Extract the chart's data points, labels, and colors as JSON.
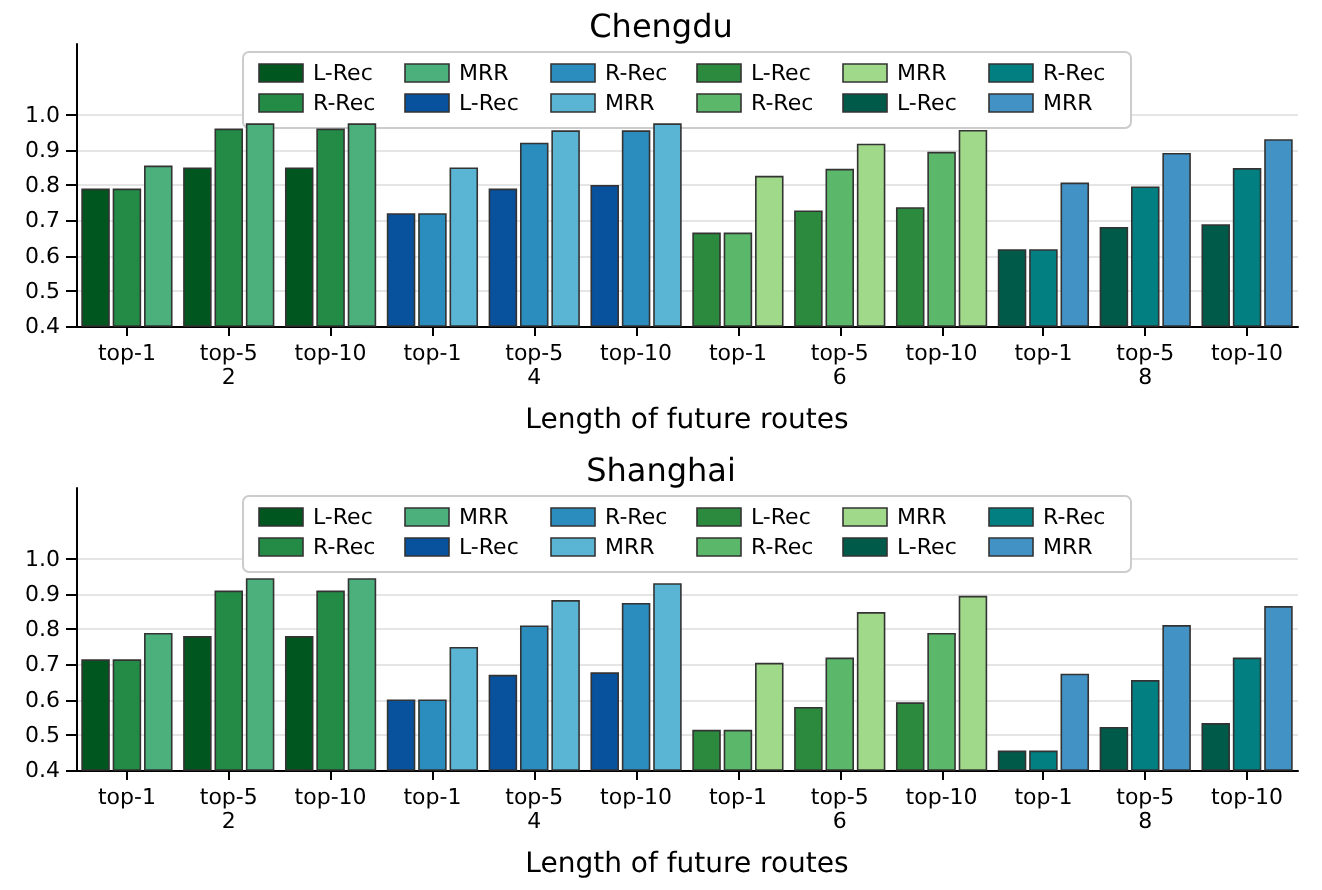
{
  "chart_data": [
    {
      "type": "bar",
      "title": "Chengdu",
      "xlabel": "Length of future routes",
      "categories": [
        "top-1",
        "top-5",
        "top-10",
        "top-1",
        "top-5",
        "top-10",
        "top-1",
        "top-5",
        "top-10",
        "top-1",
        "top-5",
        "top-10"
      ],
      "annotations": [
        "2",
        "4",
        "6",
        "8"
      ],
      "ylim": [
        0.4,
        1.2
      ],
      "yticks": [
        0.4,
        0.5,
        0.6,
        0.7,
        0.8,
        0.9,
        {
          "value": 1.0,
          "label": "1.0"
        }
      ],
      "grid": "y",
      "legend": "top",
      "series": [
        {
          "name": "L-Rec",
          "color": "#00561f",
          "values": [
            0.79,
            0.85,
            0.85,
            null,
            null,
            null,
            null,
            null,
            null,
            null,
            null,
            null
          ]
        },
        {
          "name": "R-Rec",
          "color": "#238b45",
          "values": [
            0.79,
            0.96,
            0.96,
            null,
            null,
            null,
            null,
            null,
            null,
            null,
            null,
            null
          ]
        },
        {
          "name": "MRR",
          "color": "#4bb07c",
          "values": [
            0.855,
            0.975,
            0.975,
            null,
            null,
            null,
            null,
            null,
            null,
            null,
            null,
            null
          ]
        },
        {
          "name": "L-Rec",
          "color": "#08519c",
          "values": [
            null,
            null,
            null,
            0.72,
            0.79,
            0.8,
            null,
            null,
            null,
            null,
            null,
            null
          ]
        },
        {
          "name": "R-Rec",
          "color": "#2b8cbe",
          "values": [
            null,
            null,
            null,
            0.72,
            0.92,
            0.955,
            null,
            null,
            null,
            null,
            null,
            null
          ]
        },
        {
          "name": "MRR",
          "color": "#5ab4d3",
          "values": [
            null,
            null,
            null,
            0.85,
            0.955,
            0.975,
            null,
            null,
            null,
            null,
            null,
            null
          ]
        },
        {
          "name": "L-Rec",
          "color": "#2b8a3e",
          "values": [
            null,
            null,
            null,
            null,
            null,
            null,
            0.665,
            0.728,
            0.737,
            null,
            null,
            null
          ]
        },
        {
          "name": "R-Rec",
          "color": "#5bb86b",
          "values": [
            null,
            null,
            null,
            null,
            null,
            null,
            0.665,
            0.846,
            0.894,
            null,
            null,
            null
          ]
        },
        {
          "name": "MRR",
          "color": "#a1d98b",
          "values": [
            null,
            null,
            null,
            null,
            null,
            null,
            0.826,
            0.917,
            0.956,
            null,
            null,
            null
          ]
        },
        {
          "name": "L-Rec",
          "color": "#005a4a",
          "values": [
            null,
            null,
            null,
            null,
            null,
            null,
            null,
            null,
            null,
            0.618,
            0.681,
            0.689
          ]
        },
        {
          "name": "R-Rec",
          "color": "#017f81",
          "values": [
            null,
            null,
            null,
            null,
            null,
            null,
            null,
            null,
            null,
            0.618,
            0.796,
            0.848
          ]
        },
        {
          "name": "MRR",
          "color": "#4292c6",
          "values": [
            null,
            null,
            null,
            null,
            null,
            null,
            null,
            null,
            null,
            0.807,
            0.891,
            0.93
          ]
        }
      ]
    },
    {
      "type": "bar",
      "title": "Shanghai",
      "xlabel": "Length of future routes",
      "categories": [
        "top-1",
        "top-5",
        "top-10",
        "top-1",
        "top-5",
        "top-10",
        "top-1",
        "top-5",
        "top-10",
        "top-1",
        "top-5",
        "top-10"
      ],
      "annotations": [
        "2",
        "4",
        "6",
        "8"
      ],
      "ylim": [
        0.4,
        1.2
      ],
      "yticks": [
        0.4,
        0.5,
        0.6,
        0.7,
        0.8,
        0.9,
        {
          "value": 1.0,
          "label": "1.0"
        }
      ],
      "grid": "y",
      "legend": "top",
      "series": [
        {
          "name": "L-Rec",
          "color": "#00561f",
          "values": [
            0.714,
            0.78,
            0.78,
            null,
            null,
            null,
            null,
            null,
            null,
            null,
            null,
            null
          ]
        },
        {
          "name": "R-Rec",
          "color": "#238b45",
          "values": [
            0.714,
            0.909,
            0.909,
            null,
            null,
            null,
            null,
            null,
            null,
            null,
            null,
            null
          ]
        },
        {
          "name": "MRR",
          "color": "#4bb07c",
          "values": [
            0.789,
            0.944,
            0.944,
            null,
            null,
            null,
            null,
            null,
            null,
            null,
            null,
            null
          ]
        },
        {
          "name": "L-Rec",
          "color": "#08519c",
          "values": [
            null,
            null,
            null,
            0.6,
            0.67,
            0.677,
            null,
            null,
            null,
            null,
            null,
            null
          ]
        },
        {
          "name": "R-Rec",
          "color": "#2b8cbe",
          "values": [
            null,
            null,
            null,
            0.6,
            0.81,
            0.874,
            null,
            null,
            null,
            null,
            null,
            null
          ]
        },
        {
          "name": "MRR",
          "color": "#5ab4d3",
          "values": [
            null,
            null,
            null,
            0.749,
            0.882,
            0.93,
            null,
            null,
            null,
            null,
            null,
            null
          ]
        },
        {
          "name": "L-Rec",
          "color": "#2b8a3e",
          "values": [
            null,
            null,
            null,
            null,
            null,
            null,
            0.514,
            0.579,
            0.592,
            null,
            null,
            null
          ]
        },
        {
          "name": "R-Rec",
          "color": "#5bb86b",
          "values": [
            null,
            null,
            null,
            null,
            null,
            null,
            0.514,
            0.719,
            0.789,
            null,
            null,
            null
          ]
        },
        {
          "name": "MRR",
          "color": "#a1d98b",
          "values": [
            null,
            null,
            null,
            null,
            null,
            null,
            0.704,
            0.848,
            0.894,
            null,
            null,
            null
          ]
        },
        {
          "name": "L-Rec",
          "color": "#005a4a",
          "values": [
            null,
            null,
            null,
            null,
            null,
            null,
            null,
            null,
            null,
            0.455,
            0.522,
            0.533
          ]
        },
        {
          "name": "R-Rec",
          "color": "#017f81",
          "values": [
            null,
            null,
            null,
            null,
            null,
            null,
            null,
            null,
            null,
            0.455,
            0.655,
            0.719
          ]
        },
        {
          "name": "MRR",
          "color": "#4292c6",
          "values": [
            null,
            null,
            null,
            null,
            null,
            null,
            null,
            null,
            null,
            0.673,
            0.811,
            0.865
          ]
        }
      ]
    }
  ]
}
